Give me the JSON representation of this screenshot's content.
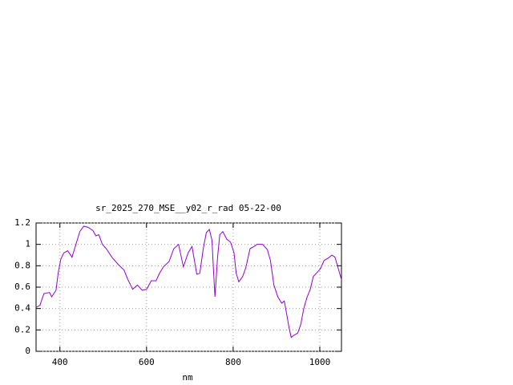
{
  "chart_data": {
    "type": "line",
    "title": "sr_2025_270_MSE__y02_r_rad 05-22-00",
    "x_label": "nm",
    "xlim": [
      345,
      1050
    ],
    "ylim": [
      0,
      1.2
    ],
    "xticks": [
      400,
      600,
      800,
      1000
    ],
    "yticks": [
      0,
      0.2,
      0.4,
      0.6,
      0.8,
      1,
      1.2
    ],
    "grid": true,
    "series": [
      {
        "color": "#9400d3",
        "x": [
          345,
          354,
          363,
          376,
          381,
          391,
          396,
          402,
          409,
          418,
          428,
          437,
          446,
          455,
          465,
          476,
          483,
          490,
          498,
          507,
          520,
          535,
          548,
          557,
          568,
          579,
          590,
          600,
          611,
          622,
          630,
          639,
          652,
          663,
          674,
          685,
          696,
          705,
          716,
          723,
          731,
          738,
          745,
          751,
          755,
          758,
          764,
          769,
          776,
          785,
          794,
          802,
          807,
          813,
          822,
          829,
          839,
          848,
          855,
          868,
          879,
          886,
          894,
          903,
          912,
          918,
          923,
          929,
          934,
          940,
          949,
          956,
          963,
          970,
          978,
          985,
          992,
          1001,
          1010,
          1019,
          1028,
          1035,
          1050
        ],
        "values": [
          0.41,
          0.43,
          0.54,
          0.55,
          0.51,
          0.57,
          0.73,
          0.86,
          0.92,
          0.94,
          0.88,
          1.0,
          1.12,
          1.17,
          1.16,
          1.13,
          1.08,
          1.09,
          1.0,
          0.96,
          0.88,
          0.81,
          0.76,
          0.67,
          0.58,
          0.62,
          0.57,
          0.58,
          0.66,
          0.66,
          0.73,
          0.79,
          0.84,
          0.96,
          1.0,
          0.79,
          0.92,
          0.98,
          0.72,
          0.73,
          0.96,
          1.11,
          1.14,
          1.04,
          0.73,
          0.51,
          0.88,
          1.09,
          1.12,
          1.05,
          1.02,
          0.92,
          0.73,
          0.65,
          0.7,
          0.78,
          0.96,
          0.98,
          1.0,
          1.0,
          0.95,
          0.85,
          0.62,
          0.51,
          0.45,
          0.47,
          0.36,
          0.22,
          0.13,
          0.15,
          0.17,
          0.25,
          0.4,
          0.5,
          0.58,
          0.7,
          0.73,
          0.77,
          0.85,
          0.87,
          0.9,
          0.88,
          0.67
        ]
      }
    ]
  }
}
